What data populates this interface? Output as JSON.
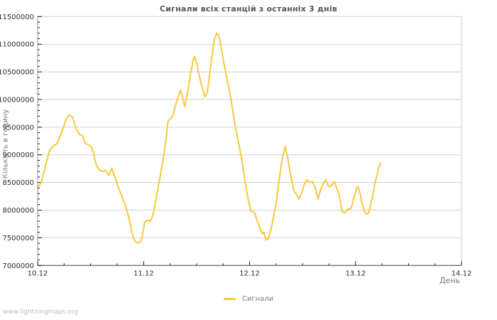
{
  "header": {
    "title": "Сигнали всіх станцій з останніх 3 днів"
  },
  "watermark": "www.lightningmaps.org",
  "colors": {
    "line": "#f8c83c",
    "grid": "#cfcfcf",
    "frame_light": "#cfcfcf",
    "axis_left": "#9a9a9a",
    "axis_bottom": "#3c3c3c",
    "tick": "#1a1a1a",
    "tick_label": "#2e2e2e",
    "muted_text": "#7a7a7a"
  },
  "chart_data": {
    "type": "line",
    "title": "Сигнали всіх станцій з останніх 3 днів",
    "xlabel": "День",
    "ylabel": "Кількість в годину",
    "grid": "horizontal-only",
    "xlim_days": [
      0,
      4
    ],
    "x_tick_days": [
      0,
      1,
      2,
      3,
      4
    ],
    "x_tick_labels": [
      "10.12",
      "11.12",
      "12.12",
      "13.12",
      "14.12"
    ],
    "x_minor_step_days": 0.25,
    "ylim": [
      7000000,
      11500000
    ],
    "y_tick_step": 500000,
    "y_minor_step": 100000,
    "legend": {
      "position": "bottom-center",
      "entries": [
        {
          "label": "Сигнали",
          "color": "#f8c83c"
        }
      ]
    },
    "series": [
      {
        "name": "Сигнали",
        "color": "#f8c83c",
        "points": [
          [
            0.007,
            8430000
          ],
          [
            0.034,
            8500000
          ],
          [
            0.081,
            8860000
          ],
          [
            0.114,
            9080000
          ],
          [
            0.155,
            9170000
          ],
          [
            0.182,
            9200000
          ],
          [
            0.209,
            9320000
          ],
          [
            0.236,
            9450000
          ],
          [
            0.269,
            9650000
          ],
          [
            0.296,
            9720000
          ],
          [
            0.33,
            9680000
          ],
          [
            0.364,
            9480000
          ],
          [
            0.391,
            9370000
          ],
          [
            0.424,
            9350000
          ],
          [
            0.444,
            9220000
          ],
          [
            0.478,
            9180000
          ],
          [
            0.505,
            9150000
          ],
          [
            0.525,
            9050000
          ],
          [
            0.552,
            8820000
          ],
          [
            0.579,
            8730000
          ],
          [
            0.613,
            8700000
          ],
          [
            0.64,
            8720000
          ],
          [
            0.673,
            8630000
          ],
          [
            0.7,
            8760000
          ],
          [
            0.727,
            8600000
          ],
          [
            0.761,
            8420000
          ],
          [
            0.795,
            8250000
          ],
          [
            0.828,
            8080000
          ],
          [
            0.862,
            7850000
          ],
          [
            0.889,
            7600000
          ],
          [
            0.916,
            7440000
          ],
          [
            0.943,
            7410000
          ],
          [
            0.97,
            7420000
          ],
          [
            0.99,
            7550000
          ],
          [
            1.01,
            7780000
          ],
          [
            1.037,
            7820000
          ],
          [
            1.057,
            7800000
          ],
          [
            1.077,
            7850000
          ],
          [
            1.098,
            8000000
          ],
          [
            1.131,
            8350000
          ],
          [
            1.165,
            8700000
          ],
          [
            1.199,
            9100000
          ],
          [
            1.232,
            9620000
          ],
          [
            1.259,
            9660000
          ],
          [
            1.28,
            9720000
          ],
          [
            1.293,
            9850000
          ],
          [
            1.327,
            10050000
          ],
          [
            1.347,
            10170000
          ],
          [
            1.367,
            10050000
          ],
          [
            1.387,
            9870000
          ],
          [
            1.414,
            10100000
          ],
          [
            1.441,
            10450000
          ],
          [
            1.468,
            10720000
          ],
          [
            1.481,
            10780000
          ],
          [
            1.502,
            10650000
          ],
          [
            1.529,
            10400000
          ],
          [
            1.556,
            10200000
          ],
          [
            1.582,
            10050000
          ],
          [
            1.603,
            10150000
          ],
          [
            1.623,
            10450000
          ],
          [
            1.65,
            10850000
          ],
          [
            1.67,
            11100000
          ],
          [
            1.69,
            11200000
          ],
          [
            1.71,
            11150000
          ],
          [
            1.731,
            10950000
          ],
          [
            1.758,
            10650000
          ],
          [
            1.784,
            10400000
          ],
          [
            1.811,
            10150000
          ],
          [
            1.838,
            9850000
          ],
          [
            1.865,
            9500000
          ],
          [
            1.899,
            9190000
          ],
          [
            1.932,
            8850000
          ],
          [
            1.959,
            8500000
          ],
          [
            1.986,
            8200000
          ],
          [
            2.013,
            7980000
          ],
          [
            2.047,
            7960000
          ],
          [
            2.074,
            7800000
          ],
          [
            2.101,
            7650000
          ],
          [
            2.121,
            7570000
          ],
          [
            2.135,
            7600000
          ],
          [
            2.155,
            7460000
          ],
          [
            2.175,
            7480000
          ],
          [
            2.202,
            7650000
          ],
          [
            2.229,
            7900000
          ],
          [
            2.256,
            8200000
          ],
          [
            2.283,
            8600000
          ],
          [
            2.31,
            8950000
          ],
          [
            2.337,
            9150000
          ],
          [
            2.364,
            8900000
          ],
          [
            2.391,
            8600000
          ],
          [
            2.418,
            8350000
          ],
          [
            2.444,
            8280000
          ],
          [
            2.465,
            8200000
          ],
          [
            2.492,
            8320000
          ],
          [
            2.519,
            8480000
          ],
          [
            2.539,
            8550000
          ],
          [
            2.566,
            8500000
          ],
          [
            2.593,
            8520000
          ],
          [
            2.62,
            8400000
          ],
          [
            2.646,
            8200000
          ],
          [
            2.673,
            8380000
          ],
          [
            2.7,
            8500000
          ],
          [
            2.721,
            8550000
          ],
          [
            2.741,
            8440000
          ],
          [
            2.761,
            8420000
          ],
          [
            2.781,
            8470000
          ],
          [
            2.801,
            8520000
          ],
          [
            2.822,
            8400000
          ],
          [
            2.848,
            8250000
          ],
          [
            2.875,
            7970000
          ],
          [
            2.902,
            7950000
          ],
          [
            2.929,
            8020000
          ],
          [
            2.956,
            8030000
          ],
          [
            2.983,
            8200000
          ],
          [
            3.01,
            8400000
          ],
          [
            3.023,
            8430000
          ],
          [
            3.043,
            8300000
          ],
          [
            3.064,
            8100000
          ],
          [
            3.084,
            7980000
          ],
          [
            3.104,
            7930000
          ],
          [
            3.124,
            7950000
          ],
          [
            3.144,
            8100000
          ],
          [
            3.165,
            8300000
          ],
          [
            3.185,
            8500000
          ],
          [
            3.205,
            8650000
          ],
          [
            3.225,
            8800000
          ],
          [
            3.239,
            8850000
          ]
        ]
      }
    ]
  }
}
